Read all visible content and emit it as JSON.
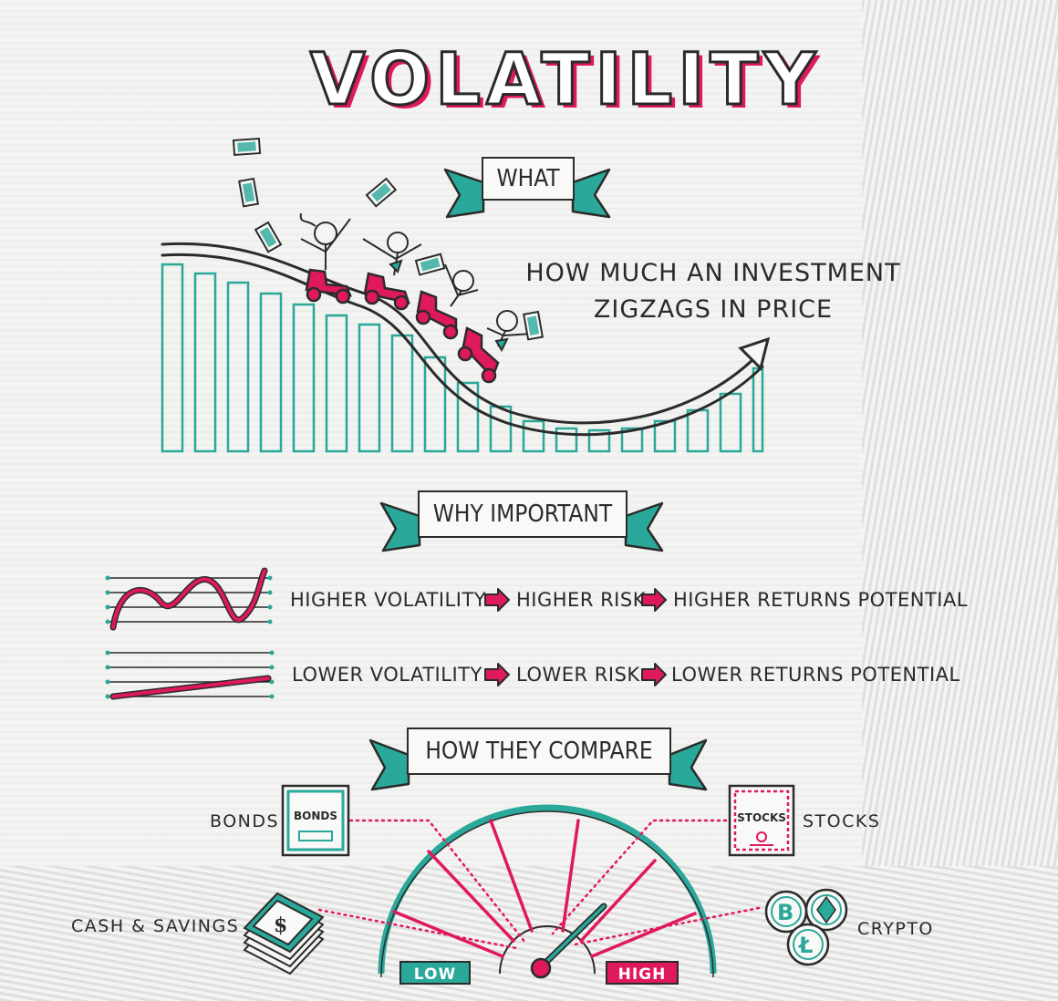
{
  "title": "VOLATILITY",
  "sections": {
    "what": {
      "heading": "WHAT",
      "description_line1": "HOW MUCH AN INVESTMENT",
      "description_line2": "ZIGZAGS IN PRICE"
    },
    "why": {
      "heading": "WHY IMPORTANT",
      "high": [
        "HIGHER VOLATILITY",
        "HIGHER RISK",
        "HIGHER RETURNS POTENTIAL"
      ],
      "low": [
        "LOWER VOLATILITY",
        "LOWER RISK",
        "LOWER RETURNS POTENTIAL"
      ]
    },
    "compare": {
      "heading": "HOW THEY COMPARE",
      "assets": {
        "cash": "CASH & SAVINGS",
        "bonds": "BONDS",
        "stocks": "STOCKS",
        "crypto": "CRYPTO"
      },
      "bond_card": "BONDS",
      "stock_card": "STOCKS",
      "gauge_low": "LOW",
      "gauge_high": "HIGH"
    }
  },
  "colors": {
    "teal": "#2aa89a",
    "pink": "#e0185e",
    "ink": "#2b2b2b"
  },
  "icons": [
    "dollar-bill-icon",
    "roller-coaster-icon",
    "bitcoin-icon",
    "ethereum-icon",
    "litecoin-icon",
    "cash-stack-icon"
  ]
}
